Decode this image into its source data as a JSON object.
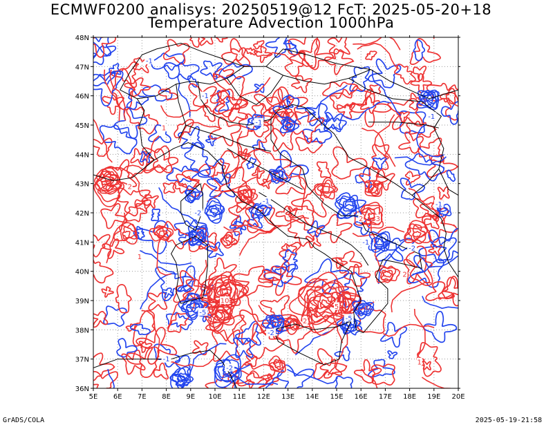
{
  "title_line1": "ECMWF0200 analisys: 20250519@12 FcT: 2025-05-20+18",
  "title_line2": "Temperature Advection 1000hPa",
  "footer_left": "GrADS/COLA",
  "footer_right": "2025-05-19-21:58",
  "colors": {
    "positive_contour": "#ee3333",
    "negative_contour": "#2244ee",
    "coastline": "#000000",
    "grid": "#999999"
  },
  "map": {
    "lon_range": [
      5,
      20
    ],
    "lat_range": [
      36,
      48
    ],
    "lon_labels": [
      "5E",
      "6E",
      "7E",
      "8E",
      "9E",
      "10E",
      "11E",
      "12E",
      "13E",
      "14E",
      "15E",
      "16E",
      "17E",
      "18E",
      "19E",
      "20E"
    ],
    "lat_labels": [
      "36N",
      "37N",
      "38N",
      "39N",
      "40N",
      "41N",
      "42N",
      "43N",
      "44N",
      "45N",
      "46N",
      "47N",
      "48N"
    ],
    "grid": "dotted",
    "contour_labels": [
      {
        "text": "-1",
        "lon": 7.3,
        "lat": 47.2,
        "sign": "neg"
      },
      {
        "text": "1",
        "lon": 7.9,
        "lat": 44.9,
        "sign": "pos"
      },
      {
        "text": "-1",
        "lon": 9.6,
        "lat": 46.0,
        "sign": "neg"
      },
      {
        "text": "-1",
        "lon": 11.8,
        "lat": 45.1,
        "sign": "neg"
      },
      {
        "text": "-2",
        "lon": 9.3,
        "lat": 42.0,
        "sign": "neg"
      },
      {
        "text": "2",
        "lon": 6.5,
        "lat": 42.9,
        "sign": "pos"
      },
      {
        "text": "-1",
        "lon": 12.1,
        "lat": 42.4,
        "sign": "neg"
      },
      {
        "text": "2",
        "lon": 16.0,
        "lat": 41.8,
        "sign": "pos"
      },
      {
        "text": "3",
        "lon": 16.7,
        "lat": 41.8,
        "sign": "pos"
      },
      {
        "text": "-1",
        "lon": 16.2,
        "lat": 41.0,
        "sign": "neg"
      },
      {
        "text": "-2",
        "lon": 18.1,
        "lat": 40.8,
        "sign": "neg"
      },
      {
        "text": "2",
        "lon": 17.8,
        "lat": 39.9,
        "sign": "pos"
      },
      {
        "text": "10",
        "lon": 10.4,
        "lat": 39.0,
        "sign": "pos"
      },
      {
        "text": "-5",
        "lon": 9.5,
        "lat": 38.6,
        "sign": "neg"
      },
      {
        "text": "5",
        "lon": 15.0,
        "lat": 38.8,
        "sign": "pos"
      },
      {
        "text": "-5",
        "lon": 15.5,
        "lat": 38.4,
        "sign": "neg"
      },
      {
        "text": "2",
        "lon": 13.7,
        "lat": 38.3,
        "sign": "pos"
      },
      {
        "text": "-2",
        "lon": 12.3,
        "lat": 37.9,
        "sign": "neg"
      },
      {
        "text": "-1",
        "lon": 8.0,
        "lat": 37.0,
        "sign": "neg"
      },
      {
        "text": "-2",
        "lon": 10.6,
        "lat": 36.7,
        "sign": "neg"
      },
      {
        "text": "1",
        "lon": 6.9,
        "lat": 40.5,
        "sign": "pos"
      },
      {
        "text": "-1",
        "lon": 18.9,
        "lat": 45.3,
        "sign": "neg"
      },
      {
        "text": "1",
        "lon": 18.4,
        "lat": 36.9,
        "sign": "pos"
      },
      {
        "text": "-1",
        "lon": 19.2,
        "lat": 42.3,
        "sign": "neg"
      }
    ]
  }
}
